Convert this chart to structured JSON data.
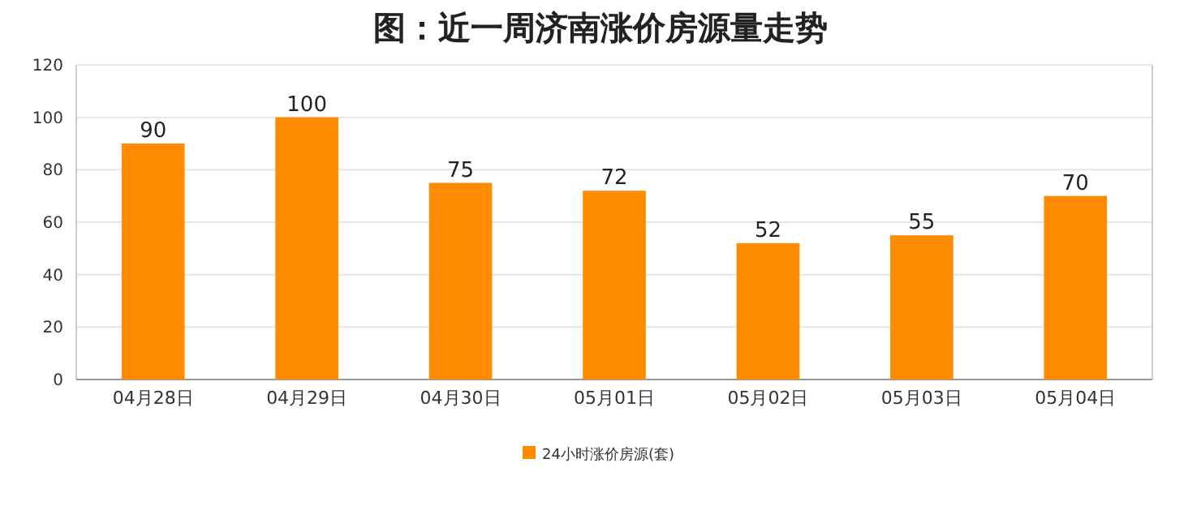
{
  "chart_data": {
    "type": "bar",
    "title": "图：近一周济南涨价房源量走势",
    "categories": [
      "04月28日",
      "04月29日",
      "04月30日",
      "05月01日",
      "05月02日",
      "05月03日",
      "05月04日"
    ],
    "series": [
      {
        "name": "24小时涨价房源(套)",
        "color": "#ff8c00",
        "values": [
          90,
          100,
          75,
          72,
          52,
          55,
          70
        ]
      }
    ],
    "ylim": [
      0,
      120
    ],
    "yticks": [
      0,
      20,
      40,
      60,
      80,
      100,
      120
    ],
    "grid": "y",
    "legend": "bottom",
    "data_labels": true
  }
}
